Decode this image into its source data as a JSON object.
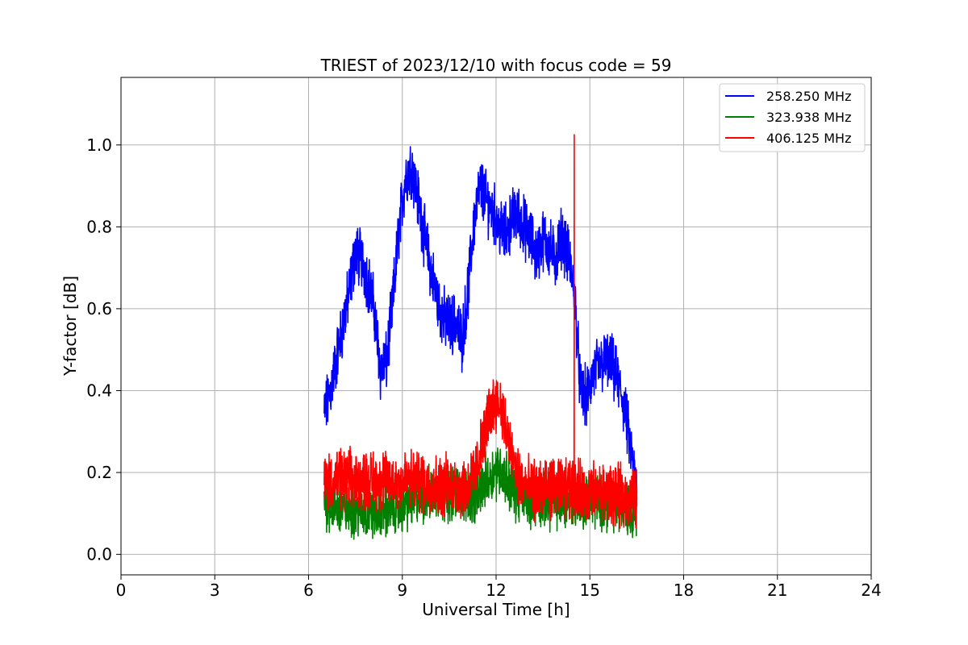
{
  "chart_data": {
    "type": "line",
    "title": "TRIEST of 2023/12/10 with focus code = 59",
    "xlabel": "Universal Time [h]",
    "ylabel": "Y-factor [dB]",
    "xlim": [
      0,
      24
    ],
    "ylim": [
      -0.05,
      1.165
    ],
    "xticks": [
      0,
      3,
      6,
      9,
      12,
      15,
      18,
      21,
      24
    ],
    "yticks": [
      0.0,
      0.2,
      0.4,
      0.6,
      0.8,
      1.0
    ],
    "xtick_labels": [
      "0",
      "3",
      "6",
      "9",
      "12",
      "15",
      "18",
      "21",
      "24"
    ],
    "ytick_labels": [
      "0.0",
      "0.2",
      "0.4",
      "0.6",
      "0.8",
      "1.0"
    ],
    "grid": true,
    "legend_position": "top-right",
    "series": [
      {
        "name": "258.250 MHz",
        "color": "#0000ff",
        "x": [
          6.5,
          6.7,
          6.9,
          7.1,
          7.3,
          7.5,
          7.7,
          7.9,
          8.1,
          8.3,
          8.5,
          8.7,
          8.9,
          9.1,
          9.3,
          9.5,
          9.7,
          9.9,
          10.1,
          10.3,
          10.5,
          10.7,
          10.9,
          11.1,
          11.3,
          11.5,
          11.7,
          11.9,
          12.1,
          12.3,
          12.5,
          12.7,
          12.9,
          13.1,
          13.3,
          13.5,
          13.7,
          13.9,
          14.1,
          14.3,
          14.5,
          14.7,
          14.9,
          15.1,
          15.3,
          15.5,
          15.7,
          15.9,
          16.1,
          16.3,
          16.5
        ],
        "y": [
          0.34,
          0.4,
          0.48,
          0.56,
          0.64,
          0.74,
          0.72,
          0.67,
          0.6,
          0.45,
          0.47,
          0.62,
          0.8,
          0.92,
          0.95,
          0.87,
          0.78,
          0.7,
          0.63,
          0.58,
          0.56,
          0.57,
          0.52,
          0.64,
          0.82,
          0.9,
          0.86,
          0.84,
          0.8,
          0.78,
          0.82,
          0.83,
          0.8,
          0.77,
          0.73,
          0.77,
          0.75,
          0.72,
          0.78,
          0.73,
          0.65,
          0.4,
          0.38,
          0.44,
          0.46,
          0.47,
          0.46,
          0.42,
          0.36,
          0.26,
          0.14
        ],
        "amp": 0.055
      },
      {
        "name": "323.938 MHz",
        "color": "#008000",
        "x": [
          6.5,
          7.0,
          7.5,
          8.0,
          8.5,
          9.0,
          9.5,
          10.0,
          10.5,
          11.0,
          11.3,
          11.6,
          11.9,
          12.1,
          12.3,
          12.6,
          13.0,
          13.5,
          14.0,
          14.5,
          15.0,
          15.5,
          16.0,
          16.5
        ],
        "y": [
          0.13,
          0.11,
          0.11,
          0.1,
          0.11,
          0.12,
          0.14,
          0.15,
          0.15,
          0.15,
          0.14,
          0.17,
          0.2,
          0.21,
          0.19,
          0.15,
          0.14,
          0.13,
          0.13,
          0.13,
          0.13,
          0.13,
          0.12,
          0.11
        ],
        "amp": 0.05
      },
      {
        "name": "406.125 MHz",
        "color": "#ff0000",
        "x": [
          6.5,
          7.0,
          7.5,
          8.0,
          8.5,
          9.0,
          9.5,
          10.0,
          10.5,
          11.0,
          11.3,
          11.6,
          11.8,
          12.0,
          12.2,
          12.4,
          12.7,
          13.0,
          13.5,
          14.0,
          14.5,
          15.0,
          15.5,
          16.0,
          16.5
        ],
        "y": [
          0.18,
          0.18,
          0.18,
          0.18,
          0.18,
          0.18,
          0.18,
          0.17,
          0.17,
          0.16,
          0.19,
          0.28,
          0.35,
          0.38,
          0.35,
          0.27,
          0.19,
          0.16,
          0.16,
          0.16,
          0.16,
          0.15,
          0.15,
          0.14,
          0.14
        ],
        "amp": 0.055,
        "spike": {
          "x": 14.5,
          "y": 1.025
        }
      }
    ]
  }
}
